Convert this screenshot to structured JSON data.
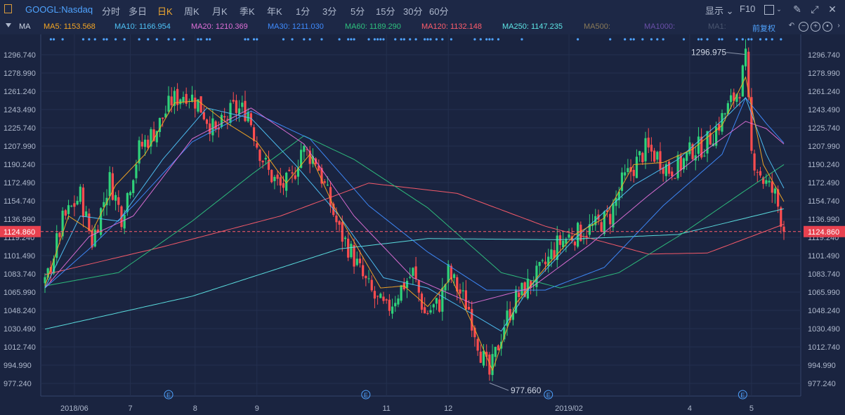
{
  "toolbar": {
    "symbol": "GOOGL:Nasdaq",
    "periods": [
      "分时",
      "多日",
      "日K",
      "周K",
      "月K",
      "季K",
      "年K",
      "1分",
      "3分",
      "5分",
      "15分",
      "30分",
      "60分"
    ],
    "active_period": "日K",
    "display_label": "显示",
    "f10_label": "F10"
  },
  "ma_bar": {
    "label": "MA",
    "items": [
      {
        "text": "MA5: 1153.568",
        "color": "#f5a623"
      },
      {
        "text": "MA10: 1166.954",
        "color": "#4fc3f7"
      },
      {
        "text": "MA20: 1210.369",
        "color": "#e070d8"
      },
      {
        "text": "MA30: 1211.030",
        "color": "#3f8cff"
      },
      {
        "text": "MA60: 1189.290",
        "color": "#2ec27e"
      },
      {
        "text": "MA120: 1132.148",
        "color": "#ff5d6c"
      },
      {
        "text": "MA250: 1147.235",
        "color": "#5ee6e6"
      },
      {
        "text": "MA500:",
        "color": "#8a7a58"
      },
      {
        "text": "MA1000:",
        "color": "#6a4fa8"
      },
      {
        "text": "MA1:",
        "color": "#4a5670"
      }
    ],
    "adjust_label": "前复权"
  },
  "chart_data": {
    "type": "candlestick",
    "y_ticks": [
      1296.74,
      1278.99,
      1261.24,
      1243.49,
      1225.74,
      1207.99,
      1190.24,
      1172.49,
      1154.74,
      1136.99,
      1119.24,
      1101.49,
      1083.74,
      1065.99,
      1048.24,
      1030.49,
      1012.74,
      994.99,
      977.24
    ],
    "ylim": [
      965.0,
      1312.0
    ],
    "current_price": 1124.86,
    "max_label": "1296.975",
    "min_label": "977.660",
    "x_ticks": [
      {
        "label": "2018/06",
        "idx": 10
      },
      {
        "label": "7",
        "idx": 29
      },
      {
        "label": "8",
        "idx": 51
      },
      {
        "label": "9",
        "idx": 72
      },
      {
        "label": "11",
        "idx": 116
      },
      {
        "label": "12",
        "idx": 137
      },
      {
        "label": "2019/02",
        "idx": 178
      },
      {
        "label": "4",
        "idx": 219
      },
      {
        "label": "5",
        "idx": 240
      }
    ],
    "earnings_idx": [
      42,
      109,
      171,
      237
    ],
    "anchors": [
      [
        0,
        1072
      ],
      [
        6,
        1135
      ],
      [
        12,
        1160
      ],
      [
        16,
        1115
      ],
      [
        22,
        1175
      ],
      [
        26,
        1140
      ],
      [
        32,
        1205
      ],
      [
        38,
        1225
      ],
      [
        43,
        1252
      ],
      [
        48,
        1260
      ],
      [
        52,
        1250
      ],
      [
        58,
        1220
      ],
      [
        64,
        1244
      ],
      [
        69,
        1242
      ],
      [
        72,
        1210
      ],
      [
        76,
        1182
      ],
      [
        80,
        1168
      ],
      [
        84,
        1175
      ],
      [
        87,
        1205
      ],
      [
        92,
        1195
      ],
      [
        96,
        1160
      ],
      [
        100,
        1125
      ],
      [
        104,
        1105
      ],
      [
        108,
        1080
      ],
      [
        112,
        1060
      ],
      [
        116,
        1048
      ],
      [
        121,
        1070
      ],
      [
        125,
        1085
      ],
      [
        129,
        1045
      ],
      [
        134,
        1055
      ],
      [
        137,
        1085
      ],
      [
        140,
        1070
      ],
      [
        144,
        1050
      ],
      [
        148,
        1008
      ],
      [
        151,
        985
      ],
      [
        156,
        1035
      ],
      [
        160,
        1060
      ],
      [
        165,
        1075
      ],
      [
        169,
        1088
      ],
      [
        174,
        1112
      ],
      [
        178,
        1120
      ],
      [
        183,
        1125
      ],
      [
        187,
        1130
      ],
      [
        192,
        1140
      ],
      [
        196,
        1172
      ],
      [
        200,
        1188
      ],
      [
        204,
        1205
      ],
      [
        208,
        1198
      ],
      [
        212,
        1185
      ],
      [
        216,
        1190
      ],
      [
        220,
        1205
      ],
      [
        224,
        1208
      ],
      [
        228,
        1225
      ],
      [
        232,
        1245
      ],
      [
        236,
        1265
      ],
      [
        238,
        1292
      ],
      [
        240,
        1200
      ],
      [
        244,
        1175
      ],
      [
        248,
        1160
      ],
      [
        251,
        1128
      ]
    ],
    "ma_lines": [
      {
        "name": "MA250",
        "color": "#5ee6e6",
        "pts": [
          [
            0,
            1030
          ],
          [
            50,
            1062
          ],
          [
            100,
            1108
          ],
          [
            130,
            1118
          ],
          [
            175,
            1117
          ],
          [
            215,
            1122
          ],
          [
            251,
            1147
          ]
        ]
      },
      {
        "name": "MA120",
        "color": "#ff5d6c",
        "pts": [
          [
            0,
            1083
          ],
          [
            40,
            1110
          ],
          [
            80,
            1140
          ],
          [
            110,
            1172
          ],
          [
            140,
            1162
          ],
          [
            170,
            1130
          ],
          [
            205,
            1103
          ],
          [
            225,
            1104
          ],
          [
            251,
            1132
          ]
        ]
      },
      {
        "name": "MA60",
        "color": "#2ec27e",
        "pts": [
          [
            0,
            1072
          ],
          [
            25,
            1085
          ],
          [
            50,
            1135
          ],
          [
            70,
            1180
          ],
          [
            88,
            1218
          ],
          [
            105,
            1195
          ],
          [
            130,
            1148
          ],
          [
            155,
            1085
          ],
          [
            175,
            1070
          ],
          [
            195,
            1085
          ],
          [
            215,
            1120
          ],
          [
            238,
            1165
          ],
          [
            251,
            1190
          ]
        ]
      },
      {
        "name": "MA30",
        "color": "#3f8cff",
        "pts": [
          [
            0,
            1070
          ],
          [
            15,
            1108
          ],
          [
            30,
            1150
          ],
          [
            50,
            1212
          ],
          [
            70,
            1242
          ],
          [
            90,
            1215
          ],
          [
            110,
            1150
          ],
          [
            130,
            1105
          ],
          [
            150,
            1068
          ],
          [
            170,
            1068
          ],
          [
            190,
            1090
          ],
          [
            210,
            1150
          ],
          [
            230,
            1200
          ],
          [
            238,
            1255
          ],
          [
            245,
            1230
          ],
          [
            251,
            1211
          ]
        ]
      },
      {
        "name": "MA20",
        "color": "#e070d8",
        "pts": [
          [
            0,
            1070
          ],
          [
            15,
            1120
          ],
          [
            30,
            1140
          ],
          [
            50,
            1215
          ],
          [
            70,
            1245
          ],
          [
            88,
            1210
          ],
          [
            105,
            1140
          ],
          [
            125,
            1080
          ],
          [
            145,
            1055
          ],
          [
            165,
            1070
          ],
          [
            185,
            1112
          ],
          [
            205,
            1160
          ],
          [
            225,
            1205
          ],
          [
            238,
            1232
          ],
          [
            245,
            1225
          ],
          [
            251,
            1210
          ]
        ]
      },
      {
        "name": "MA10",
        "color": "#4fc3f7",
        "pts": [
          [
            0,
            1070
          ],
          [
            12,
            1140
          ],
          [
            25,
            1135
          ],
          [
            40,
            1195
          ],
          [
            55,
            1245
          ],
          [
            70,
            1235
          ],
          [
            85,
            1190
          ],
          [
            100,
            1140
          ],
          [
            115,
            1080
          ],
          [
            130,
            1070
          ],
          [
            145,
            1045
          ],
          [
            155,
            1028
          ],
          [
            165,
            1072
          ],
          [
            180,
            1118
          ],
          [
            200,
            1170
          ],
          [
            215,
            1195
          ],
          [
            232,
            1238
          ],
          [
            238,
            1255
          ],
          [
            245,
            1200
          ],
          [
            251,
            1167
          ]
        ]
      },
      {
        "name": "MA5",
        "color": "#f5a623",
        "pts": [
          [
            0,
            1072
          ],
          [
            8,
            1140
          ],
          [
            16,
            1125
          ],
          [
            24,
            1170
          ],
          [
            34,
            1200
          ],
          [
            44,
            1250
          ],
          [
            52,
            1252
          ],
          [
            62,
            1230
          ],
          [
            72,
            1212
          ],
          [
            82,
            1172
          ],
          [
            90,
            1200
          ],
          [
            98,
            1150
          ],
          [
            106,
            1110
          ],
          [
            114,
            1070
          ],
          [
            122,
            1072
          ],
          [
            130,
            1052
          ],
          [
            138,
            1080
          ],
          [
            146,
            1030
          ],
          [
            152,
            990
          ],
          [
            160,
            1055
          ],
          [
            170,
            1090
          ],
          [
            180,
            1122
          ],
          [
            190,
            1138
          ],
          [
            200,
            1190
          ],
          [
            210,
            1192
          ],
          [
            220,
            1205
          ],
          [
            230,
            1228
          ],
          [
            238,
            1275
          ],
          [
            244,
            1190
          ],
          [
            251,
            1154
          ]
        ]
      }
    ]
  }
}
